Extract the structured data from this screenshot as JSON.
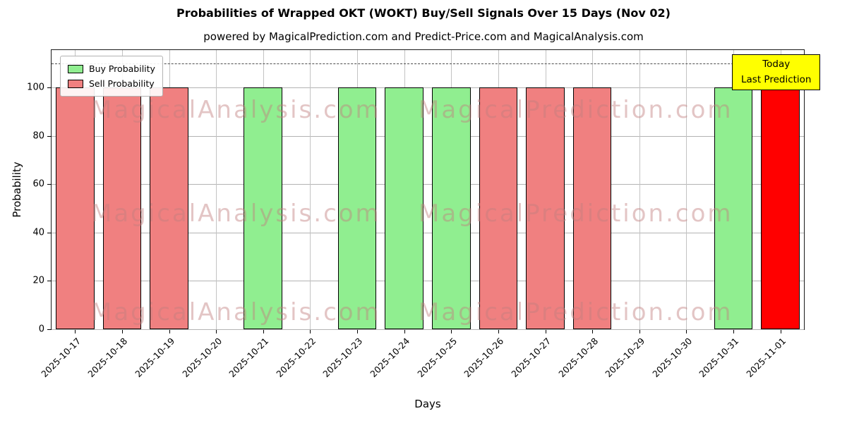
{
  "page": {
    "title": "Probabilities of Wrapped OKT (WOKT) Buy/Sell Signals Over 15 Days (Nov 02)",
    "subtitle": "powered by MagicalPrediction.com and Predict-Price.com and MagicalAnalysis.com",
    "xlabel": "Days",
    "ylabel": "Probability"
  },
  "legend": {
    "items": [
      {
        "label": "Buy Probability",
        "color": "#90ee90"
      },
      {
        "label": "Sell Probability",
        "color": "#f08080"
      }
    ]
  },
  "annotation": {
    "lines": [
      "Today",
      "Last Prediction"
    ],
    "bg": "#ffff00"
  },
  "watermarks": {
    "left": "MagicalAnalysis.com",
    "right": "MagicalPrediction.com"
  },
  "chart_data": {
    "type": "bar",
    "title": "Probabilities of Wrapped OKT (WOKT) Buy/Sell Signals Over 15 Days (Nov 02)",
    "xlabel": "Days",
    "ylabel": "Probability",
    "categories": [
      "2025-10-17",
      "2025-10-18",
      "2025-10-19",
      "2025-10-20",
      "2025-10-21",
      "2025-10-22",
      "2025-10-23",
      "2025-10-24",
      "2025-10-25",
      "2025-10-26",
      "2025-10-27",
      "2025-10-28",
      "2025-10-29",
      "2025-10-30",
      "2025-10-31",
      "2025-11-01"
    ],
    "series": [
      {
        "name": "Buy Probability",
        "color": "#90ee90",
        "values": [
          0,
          0,
          0,
          0,
          100,
          0,
          100,
          100,
          100,
          0,
          0,
          0,
          0,
          0,
          100,
          0
        ]
      },
      {
        "name": "Sell Probability",
        "color": "#f08080",
        "values": [
          100,
          100,
          100,
          0,
          0,
          0,
          0,
          0,
          0,
          100,
          100,
          100,
          0,
          0,
          0,
          0
        ]
      },
      {
        "name": "Today / Last Prediction",
        "color": "#ff0000",
        "values": [
          0,
          0,
          0,
          0,
          0,
          0,
          0,
          0,
          0,
          0,
          0,
          0,
          0,
          0,
          0,
          100
        ]
      }
    ],
    "yticks": [
      0,
      20,
      40,
      60,
      80,
      100
    ],
    "ylim": [
      0,
      115.5
    ],
    "dashed_line_y": 110,
    "grid": true,
    "legend_position": "upper-left"
  }
}
